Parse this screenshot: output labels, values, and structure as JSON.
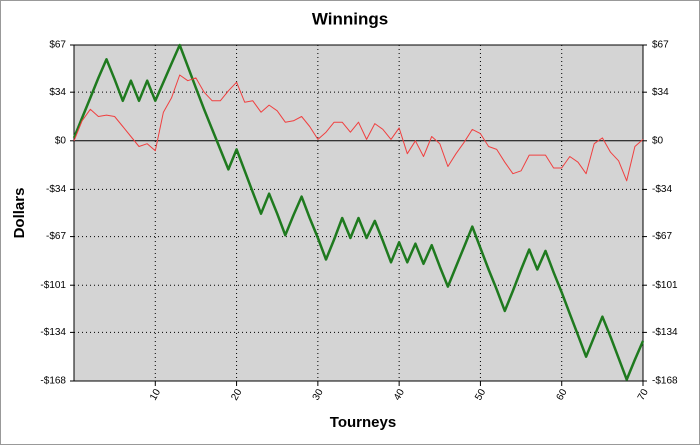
{
  "chart_data": {
    "type": "line",
    "title": "Winnings",
    "x_label": "Tourneys",
    "y_label": "Dollars",
    "x": [
      0,
      1,
      2,
      3,
      4,
      5,
      6,
      7,
      8,
      9,
      10,
      11,
      12,
      13,
      14,
      15,
      16,
      17,
      18,
      19,
      20,
      21,
      22,
      23,
      24,
      25,
      26,
      27,
      28,
      29,
      30,
      31,
      32,
      33,
      34,
      35,
      36,
      37,
      38,
      39,
      40,
      41,
      42,
      43,
      44,
      45,
      46,
      47,
      48,
      49,
      50,
      51,
      52,
      53,
      54,
      55,
      56,
      57,
      58,
      59,
      60,
      61,
      62,
      63,
      64,
      65,
      66,
      67,
      68,
      69,
      70
    ],
    "series": [
      {
        "color": "#1f7a1f",
        "width": 2.5,
        "values": [
          2,
          16,
          30,
          44,
          57,
          43,
          28,
          42,
          28,
          42,
          28,
          41,
          54,
          67,
          52,
          37,
          22,
          8,
          -6,
          -20,
          -6,
          -21,
          -36,
          -51,
          -37,
          -51,
          -66,
          -52,
          -39,
          -54,
          -68,
          -83,
          -69,
          -54,
          -68,
          -54,
          -68,
          -56,
          -70,
          -85,
          -71,
          -85,
          -72,
          -86,
          -73,
          -88,
          -102,
          -88,
          -74,
          -60,
          -75,
          -90,
          -104,
          -119,
          -105,
          -90,
          -76,
          -90,
          -77,
          -92,
          -106,
          -121,
          -136,
          -151,
          -137,
          -123,
          -137,
          -152,
          -167,
          -153,
          -140
        ]
      },
      {
        "color": "#f04040",
        "width": 1,
        "values": [
          0,
          14,
          22,
          17,
          18,
          17,
          10,
          3,
          -4,
          -2,
          -7,
          20,
          30,
          46,
          42,
          44,
          34,
          28,
          28,
          35,
          41,
          27,
          28,
          20,
          25,
          21,
          13,
          14,
          17,
          10,
          1,
          6,
          13,
          13,
          6,
          13,
          1,
          12,
          8,
          1,
          9,
          -9,
          0,
          -11,
          3,
          -2,
          -18,
          -9,
          -1,
          8,
          5,
          -4,
          -6,
          -15,
          -23,
          -21,
          -10,
          -10,
          -10,
          -19,
          -19,
          -11,
          -15,
          -23,
          -2,
          2,
          -8,
          -14,
          -28,
          -4,
          1
        ]
      }
    ],
    "xlim": [
      0,
      70
    ],
    "xticks": [
      10,
      20,
      30,
      40,
      50,
      60,
      70
    ],
    "ylim": [
      -168,
      67
    ],
    "yticks": [
      {
        "value": 67,
        "label": "$67"
      },
      {
        "value": 34,
        "label": "$34"
      },
      {
        "value": 0,
        "label": "$0"
      },
      {
        "value": -34,
        "label": "-$34"
      },
      {
        "value": -67,
        "label": "-$67"
      },
      {
        "value": -101,
        "label": "-$101"
      },
      {
        "value": -134,
        "label": "-$134"
      },
      {
        "value": -168,
        "label": "-$168"
      }
    ],
    "grid": true,
    "right_axis_mirror": true
  }
}
